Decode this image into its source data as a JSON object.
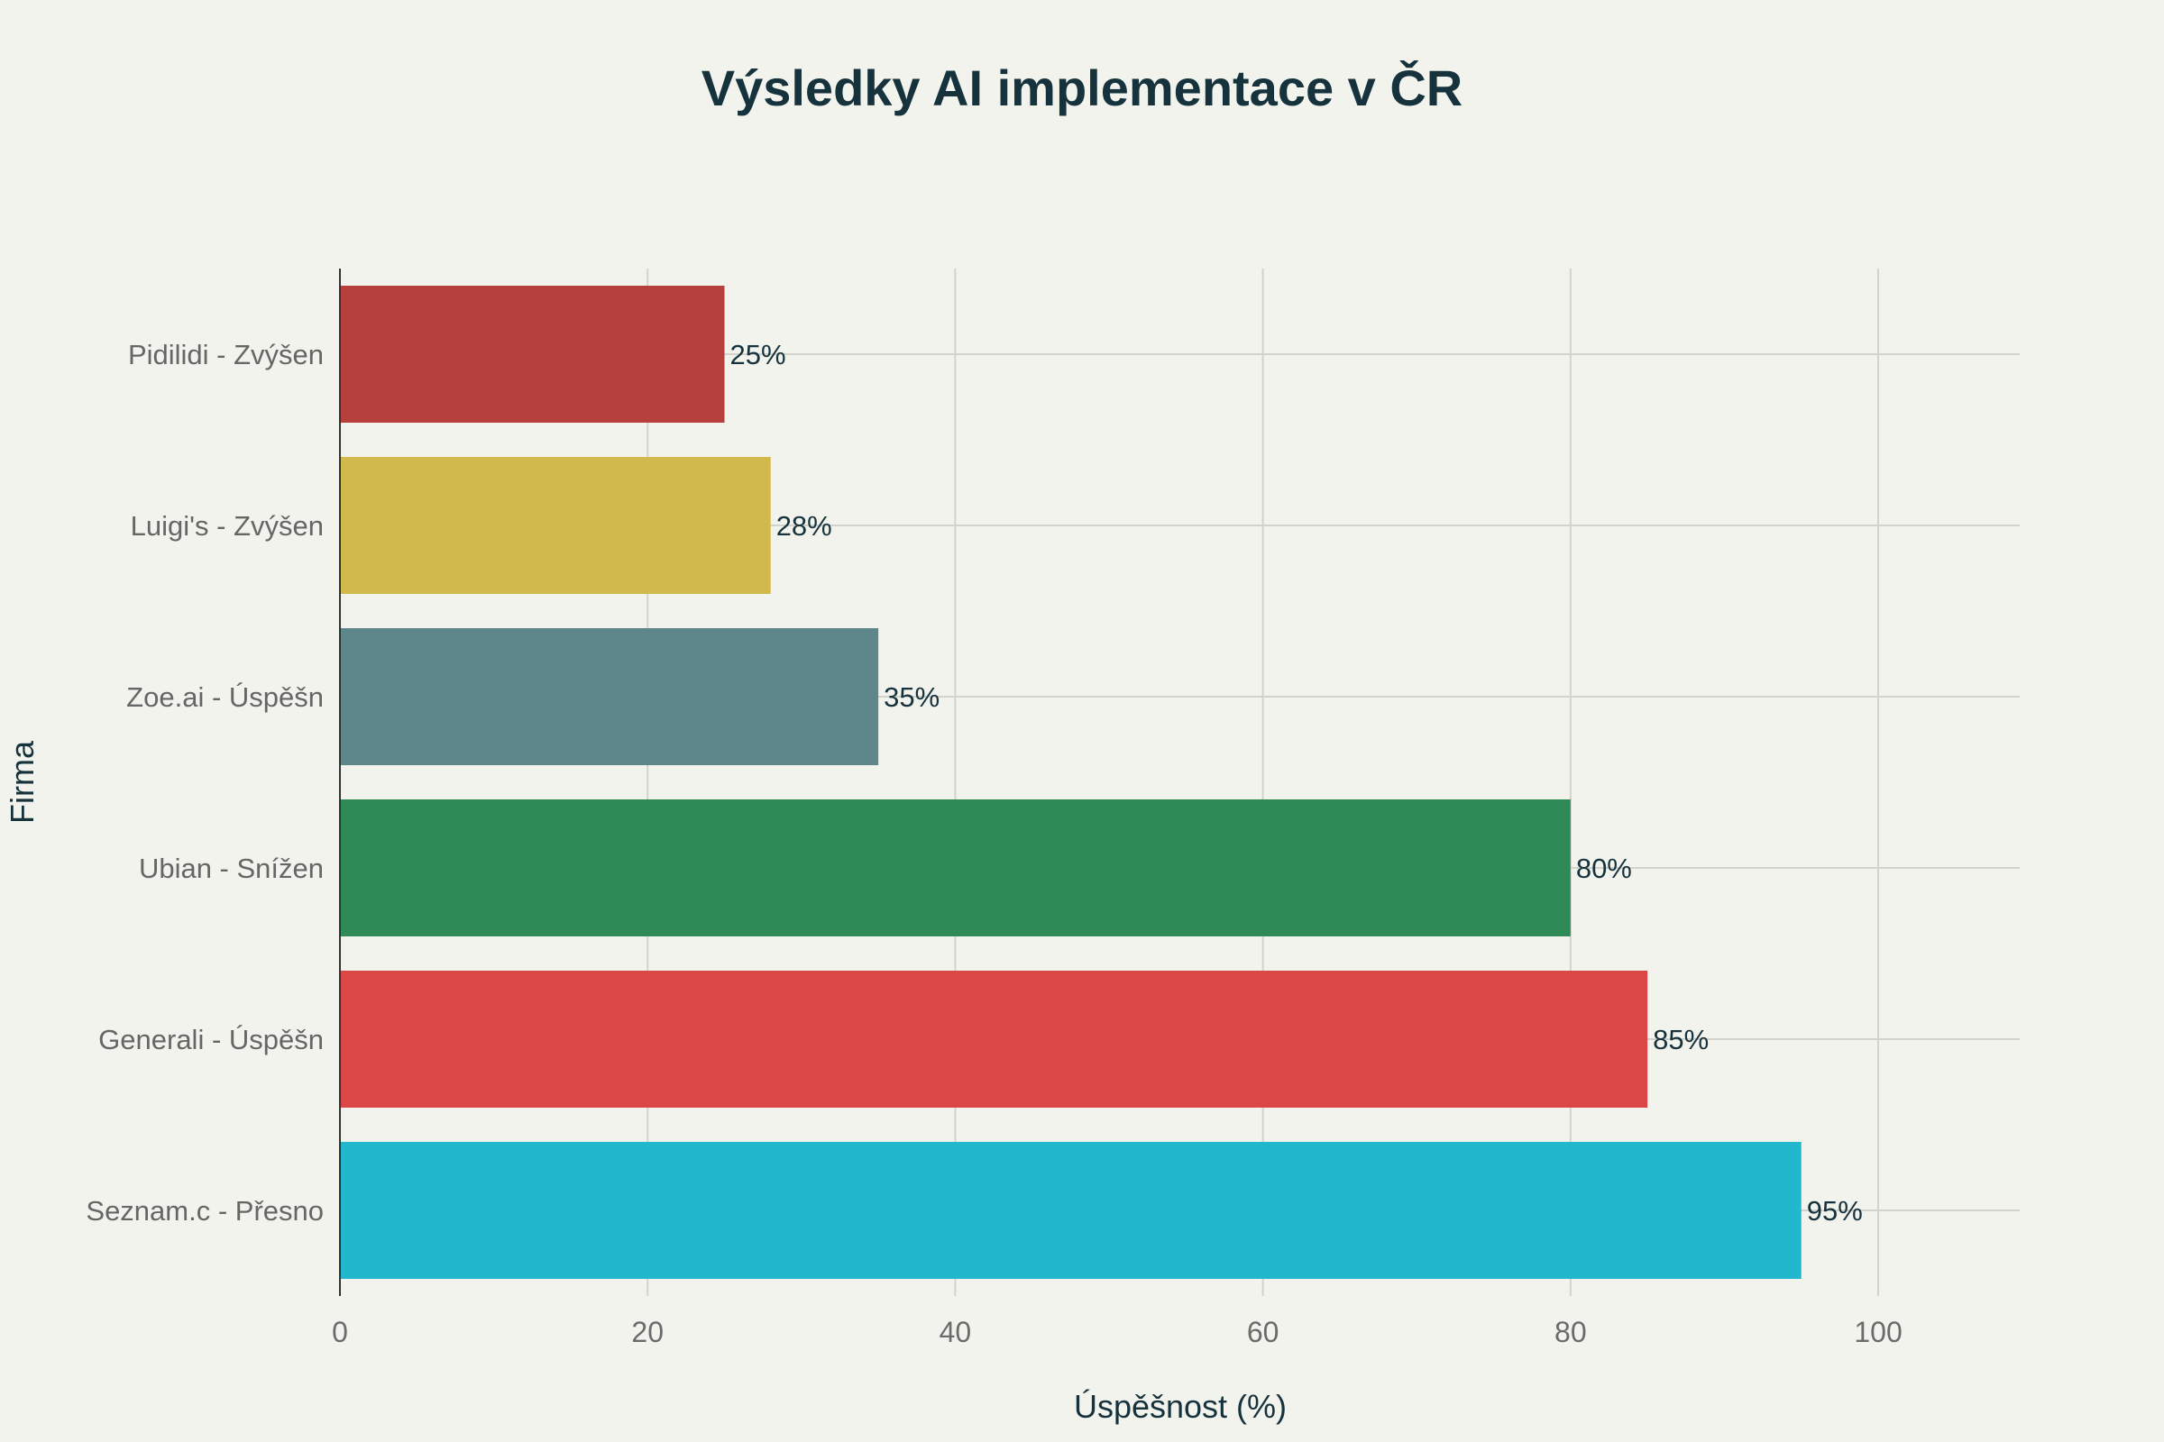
{
  "chart_data": {
    "type": "bar",
    "orientation": "horizontal",
    "title": "Výsledky AI implementace v ČR",
    "xlabel": "Úspěšnost (%)",
    "ylabel": "Firma",
    "xlim": [
      0,
      109.2
    ],
    "xticks": [
      0,
      20,
      40,
      60,
      80,
      100
    ],
    "grid": true,
    "categories": [
      "Pidilidi - Zvýšen",
      "Luigi's  - Zvýšen",
      "Zoe.ai - Úspěšn",
      "Ubian - Snížen",
      "Generali - Úspěšn",
      "Seznam.c - Přesno"
    ],
    "values": [
      25,
      28,
      35,
      80,
      85,
      95
    ],
    "data_labels": [
      "25%",
      "28%",
      "35%",
      "80%",
      "85%",
      "95%"
    ],
    "colors": [
      "#b5403d",
      "#d2b94c",
      "#5e878c",
      "#2e8b57",
      "#db4646",
      "#21b8cd"
    ]
  }
}
